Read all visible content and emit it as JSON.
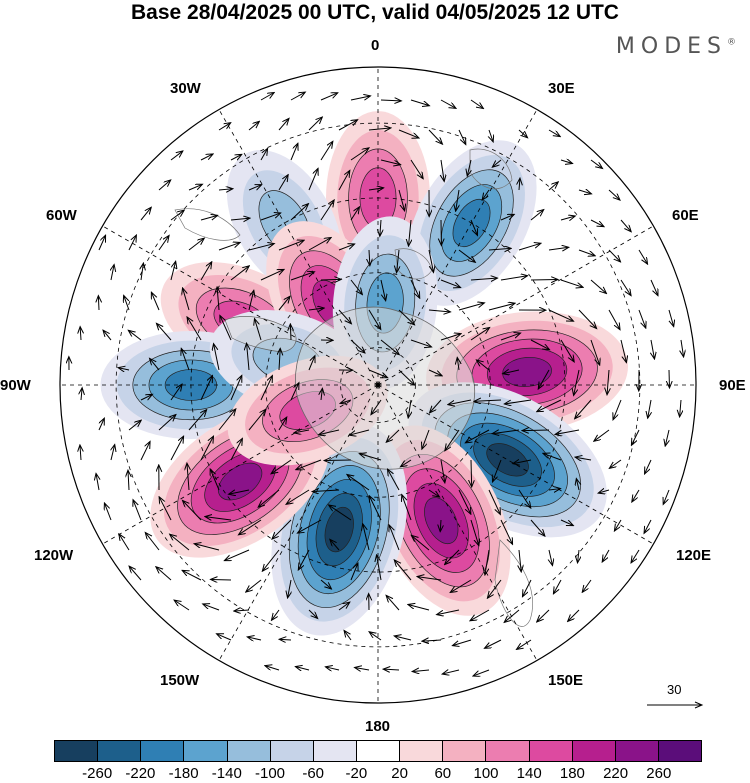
{
  "header": {
    "title": "Base 28/04/2025 00 UTC, valid 04/05/2025 12 UTC",
    "brand": "MODES"
  },
  "map": {
    "projection": "south-polar-stereographic",
    "longitude_labels": {
      "top": "0",
      "top_right": "30E",
      "upper_right": "60E",
      "right": "90E",
      "lower_right": "120E",
      "bottom_right": "150E",
      "bottom": "180",
      "bottom_left": "150W",
      "lower_left": "120W",
      "left": "90W",
      "upper_left": "60W",
      "top_left": "30W"
    },
    "reference_vector": "30",
    "anomaly_centers": [
      {
        "lon": 0,
        "lat": -40,
        "sign": "positive",
        "strength": 160
      },
      {
        "lon": 30,
        "lat": -40,
        "sign": "negative",
        "strength": 180
      },
      {
        "lon": -30,
        "lat": -40,
        "sign": "negative",
        "strength": 120
      },
      {
        "lon": -65,
        "lat": -50,
        "sign": "positive",
        "strength": 160
      },
      {
        "lon": -30,
        "lat": -65,
        "sign": "positive",
        "strength": 180
      },
      {
        "lon": 5,
        "lat": -68,
        "sign": "negative",
        "strength": 160
      },
      {
        "lon": -90,
        "lat": -40,
        "sign": "negative",
        "strength": 180
      },
      {
        "lon": -75,
        "lat": -65,
        "sign": "negative",
        "strength": 120
      },
      {
        "lon": 85,
        "lat": -50,
        "sign": "positive",
        "strength": 240
      },
      {
        "lon": 120,
        "lat": -50,
        "sign": "negative",
        "strength": 280
      },
      {
        "lon": 155,
        "lat": -50,
        "sign": "positive",
        "strength": 240
      },
      {
        "lon": -165,
        "lat": -50,
        "sign": "negative",
        "strength": 280
      },
      {
        "lon": -125,
        "lat": -45,
        "sign": "positive",
        "strength": 240
      },
      {
        "lon": -110,
        "lat": -70,
        "sign": "positive",
        "strength": 140
      }
    ]
  },
  "colorbar": {
    "ticks": [
      "-260",
      "-220",
      "-180",
      "-140",
      "-100",
      "-60",
      "-20",
      "20",
      "60",
      "100",
      "140",
      "180",
      "220",
      "260"
    ],
    "colors": [
      "#173f5f",
      "#1d5f8b",
      "#2f7fb4",
      "#5ca3cf",
      "#96bedc",
      "#c6d3e8",
      "#e4e5f2",
      "#ffffff",
      "#f9d9db",
      "#f4b1c1",
      "#ec7db0",
      "#dd4aa0",
      "#b61f8e",
      "#8a1389",
      "#5b0d7a"
    ]
  }
}
